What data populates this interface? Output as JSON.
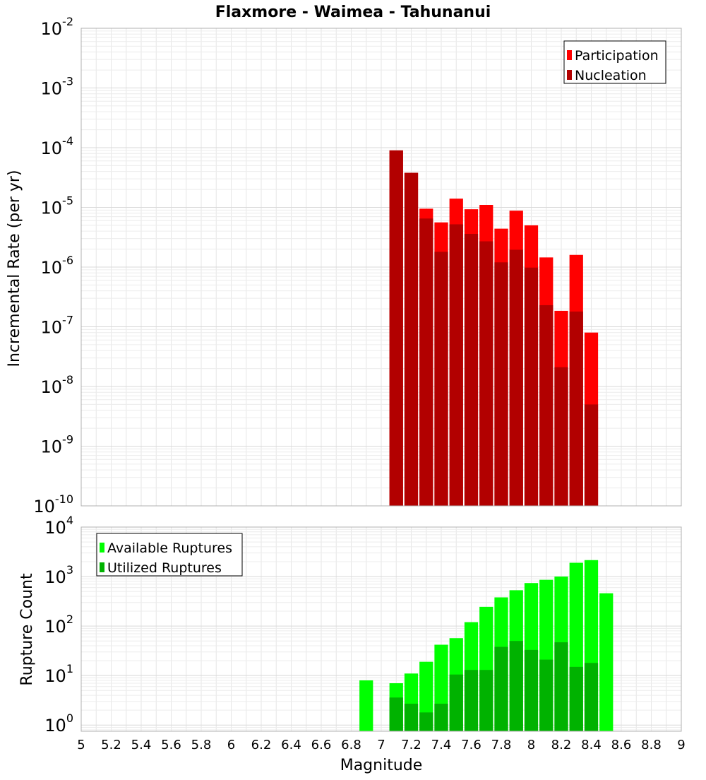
{
  "chart_data": [
    {
      "type": "bar",
      "title": "Flaxmore - Waimea - Tahunanui",
      "xlabel": "",
      "ylabel": "Incremental Rate (per yr)",
      "yscale": "log",
      "ylim": [
        1e-10,
        0.01
      ],
      "xlim": [
        5,
        9
      ],
      "legend_position": "top-right",
      "y_ticks": [
        {
          "base": "10",
          "exp": "-10"
        },
        {
          "base": "10",
          "exp": "-9"
        },
        {
          "base": "10",
          "exp": "-8"
        },
        {
          "base": "10",
          "exp": "-7"
        },
        {
          "base": "10",
          "exp": "-6"
        },
        {
          "base": "10",
          "exp": "-5"
        },
        {
          "base": "10",
          "exp": "-4"
        },
        {
          "base": "10",
          "exp": "-3"
        },
        {
          "base": "10",
          "exp": "-2"
        }
      ],
      "x": [
        7.1,
        7.2,
        7.3,
        7.4,
        7.5,
        7.6,
        7.7,
        7.8,
        7.9,
        8.0,
        8.1,
        8.2,
        8.3,
        8.4
      ],
      "series": [
        {
          "name": "Participation",
          "color": "#ff0000",
          "values": [
            9e-05,
            3.8e-05,
            9.5e-06,
            5.6e-06,
            1.4e-05,
            9.3e-06,
            1.1e-05,
            4.4e-06,
            8.8e-06,
            5e-06,
            1.45e-06,
            1.85e-07,
            1.6e-06,
            8e-08
          ]
        },
        {
          "name": "Nucleation",
          "color": "#b20000",
          "values": [
            9e-05,
            3.8e-05,
            6.5e-06,
            1.8e-06,
            5.2e-06,
            3.6e-06,
            2.7e-06,
            1.2e-06,
            1.95e-06,
            9.8e-07,
            2.3e-07,
            2.1e-08,
            1.8e-07,
            5e-09
          ]
        }
      ]
    },
    {
      "type": "bar",
      "title": "",
      "xlabel": "Magnitude",
      "ylabel": "Rupture Count",
      "yscale": "log",
      "ylim": [
        0.75,
        10000
      ],
      "xlim": [
        5,
        9
      ],
      "legend_position": "top-left",
      "x_tick_labels": [
        "5",
        "5.2",
        "5.4",
        "5.6",
        "5.8",
        "6",
        "6.2",
        "6.4",
        "6.6",
        "6.8",
        "7",
        "7.2",
        "7.4",
        "7.6",
        "7.8",
        "8",
        "8.2",
        "8.4",
        "8.6",
        "8.8",
        "9"
      ],
      "y_ticks": [
        {
          "base": "10",
          "exp": "0"
        },
        {
          "base": "10",
          "exp": "1"
        },
        {
          "base": "10",
          "exp": "2"
        },
        {
          "base": "10",
          "exp": "3"
        },
        {
          "base": "10",
          "exp": "4"
        }
      ],
      "x": [
        6.9,
        7.1,
        7.2,
        7.3,
        7.4,
        7.5,
        7.6,
        7.7,
        7.8,
        7.9,
        8.0,
        8.1,
        8.2,
        8.3,
        8.4,
        8.5
      ],
      "series": [
        {
          "name": "Available Ruptures",
          "color": "#00ff00",
          "values": [
            8,
            7,
            11,
            19,
            42,
            57,
            120,
            245,
            380,
            530,
            740,
            860,
            1000,
            1900,
            2150,
            460
          ]
        },
        {
          "name": "Utilized Ruptures",
          "color": "#00b200",
          "values": [
            0,
            3.6,
            2.7,
            1.8,
            2.7,
            10.5,
            13,
            13,
            38,
            50,
            33,
            21,
            47,
            15,
            18,
            0
          ]
        }
      ]
    }
  ]
}
